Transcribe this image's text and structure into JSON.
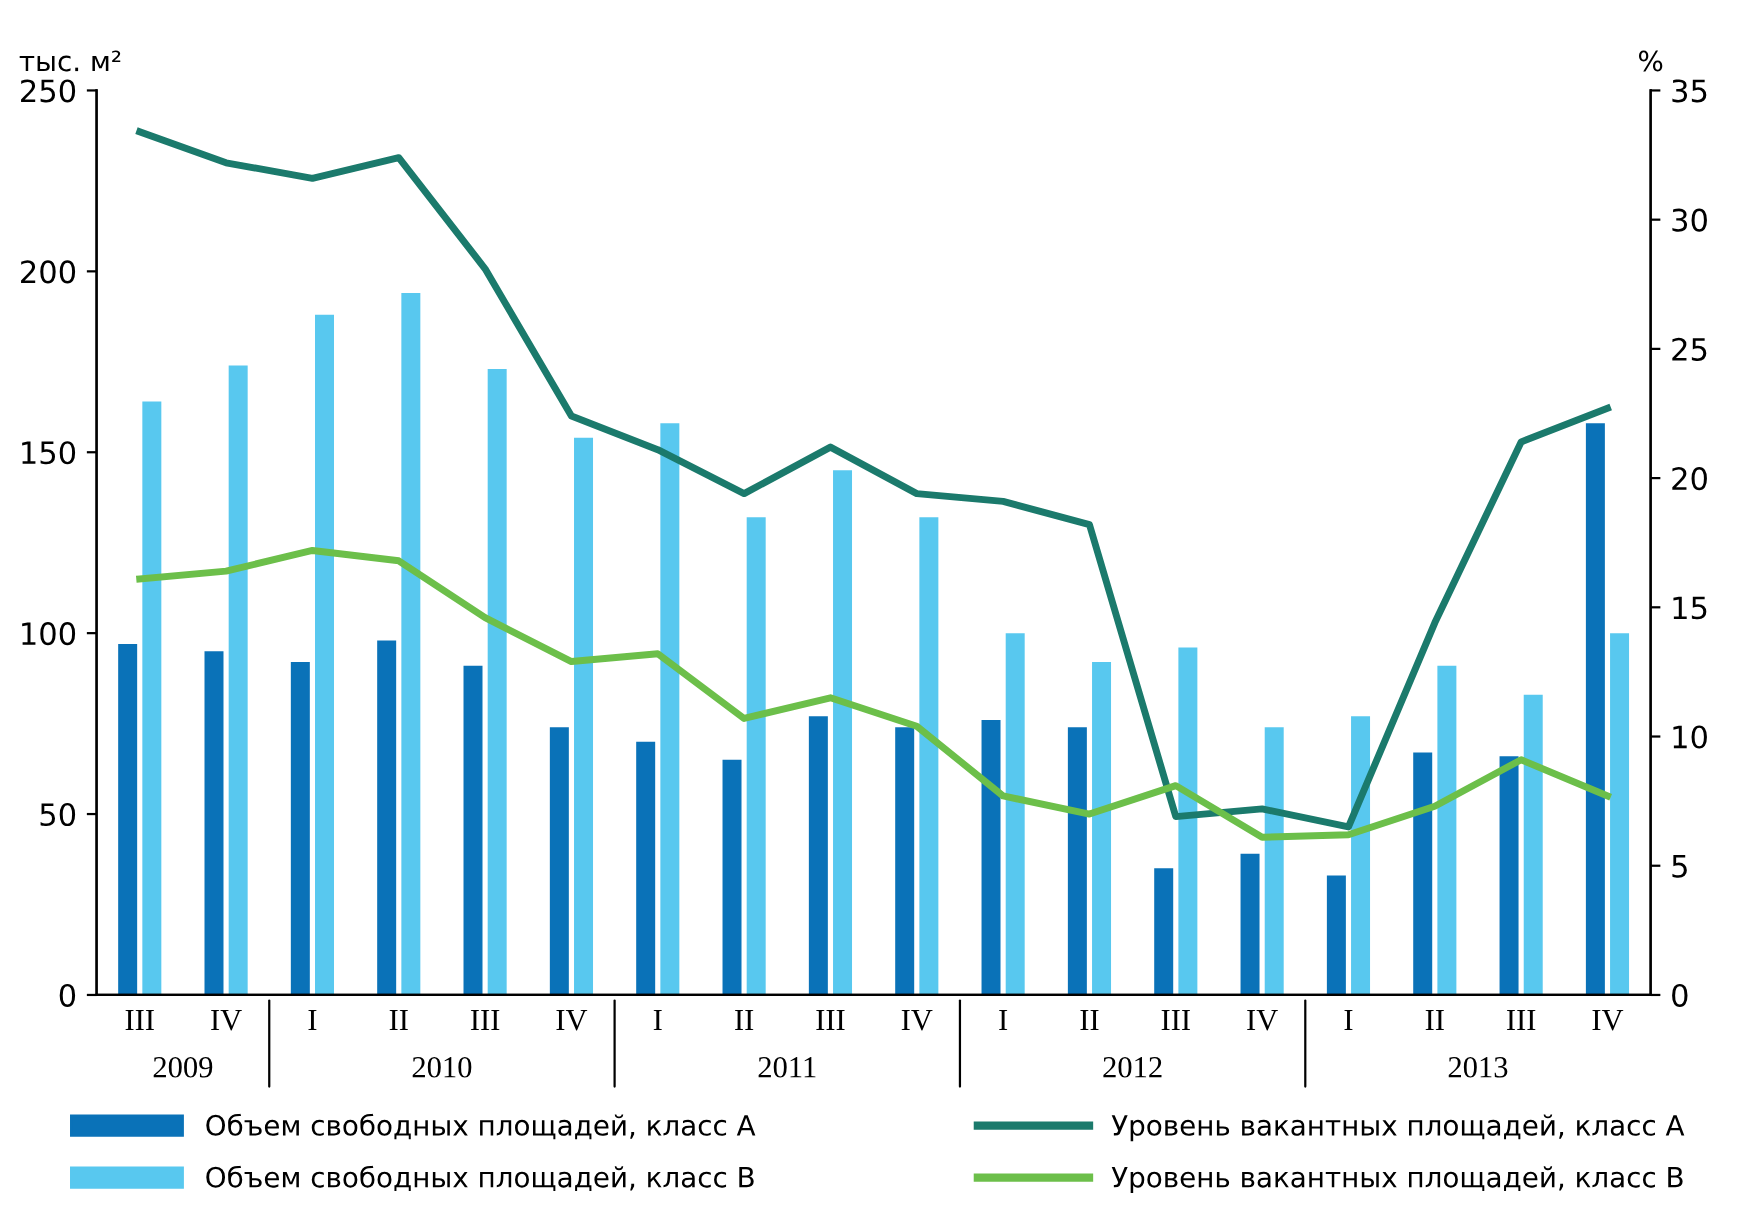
{
  "chart_data": {
    "type": "bar",
    "ylabel": "тыс. м²",
    "y2label": "%",
    "categories": [
      "III",
      "IV",
      "I",
      "II",
      "III",
      "IV",
      "I",
      "II",
      "III",
      "IV",
      "I",
      "II",
      "III",
      "IV",
      "I",
      "II",
      "III",
      "IV"
    ],
    "annotations": [
      "2009",
      "2010",
      "2011",
      "2012",
      "2013"
    ],
    "series": [
      {
        "name": "Объем свободных площадей, класс А",
        "color": "#0a72b8",
        "values": [
          97,
          95,
          92,
          98,
          91,
          74,
          70,
          65,
          77,
          74,
          76,
          74,
          35,
          39,
          33,
          67,
          66,
          158
        ]
      },
      {
        "name": "Объем свободных площадей, класс В",
        "color": "#58c8ef",
        "values": [
          164,
          174,
          188,
          194,
          173,
          154,
          158,
          132,
          145,
          132,
          100,
          92,
          96,
          74,
          77,
          91,
          83,
          100
        ]
      },
      {
        "name": "Уровень вакантных площадей, класс А",
        "color": "#1b7a6c",
        "type": "line",
        "axis": "y2",
        "values": [
          33.4,
          32.2,
          31.6,
          32.4,
          28.1,
          22.4,
          21.1,
          19.4,
          21.2,
          19.4,
          19.1,
          18.2,
          6.9,
          7.2,
          6.5,
          14.4,
          21.4,
          22.7
        ]
      },
      {
        "name": "Уровень вакантных площадей, класс В",
        "color": "#6cbf4a",
        "type": "line",
        "axis": "y2",
        "values": [
          16.1,
          16.4,
          17.2,
          16.8,
          14.6,
          12.9,
          13.2,
          10.7,
          11.5,
          10.4,
          7.7,
          7.0,
          8.1,
          6.1,
          6.2,
          7.3,
          9.1,
          7.7
        ]
      }
    ],
    "ylim": [
      0,
      250
    ],
    "yticks": [
      0,
      50,
      100,
      150,
      200,
      250
    ],
    "y2lim": [
      0,
      35
    ],
    "y2ticks": [
      0,
      5,
      10,
      15,
      20,
      25,
      30,
      35
    ],
    "grid": false,
    "legend": "bottom",
    "marker": "none",
    "line_style": "solid"
  }
}
